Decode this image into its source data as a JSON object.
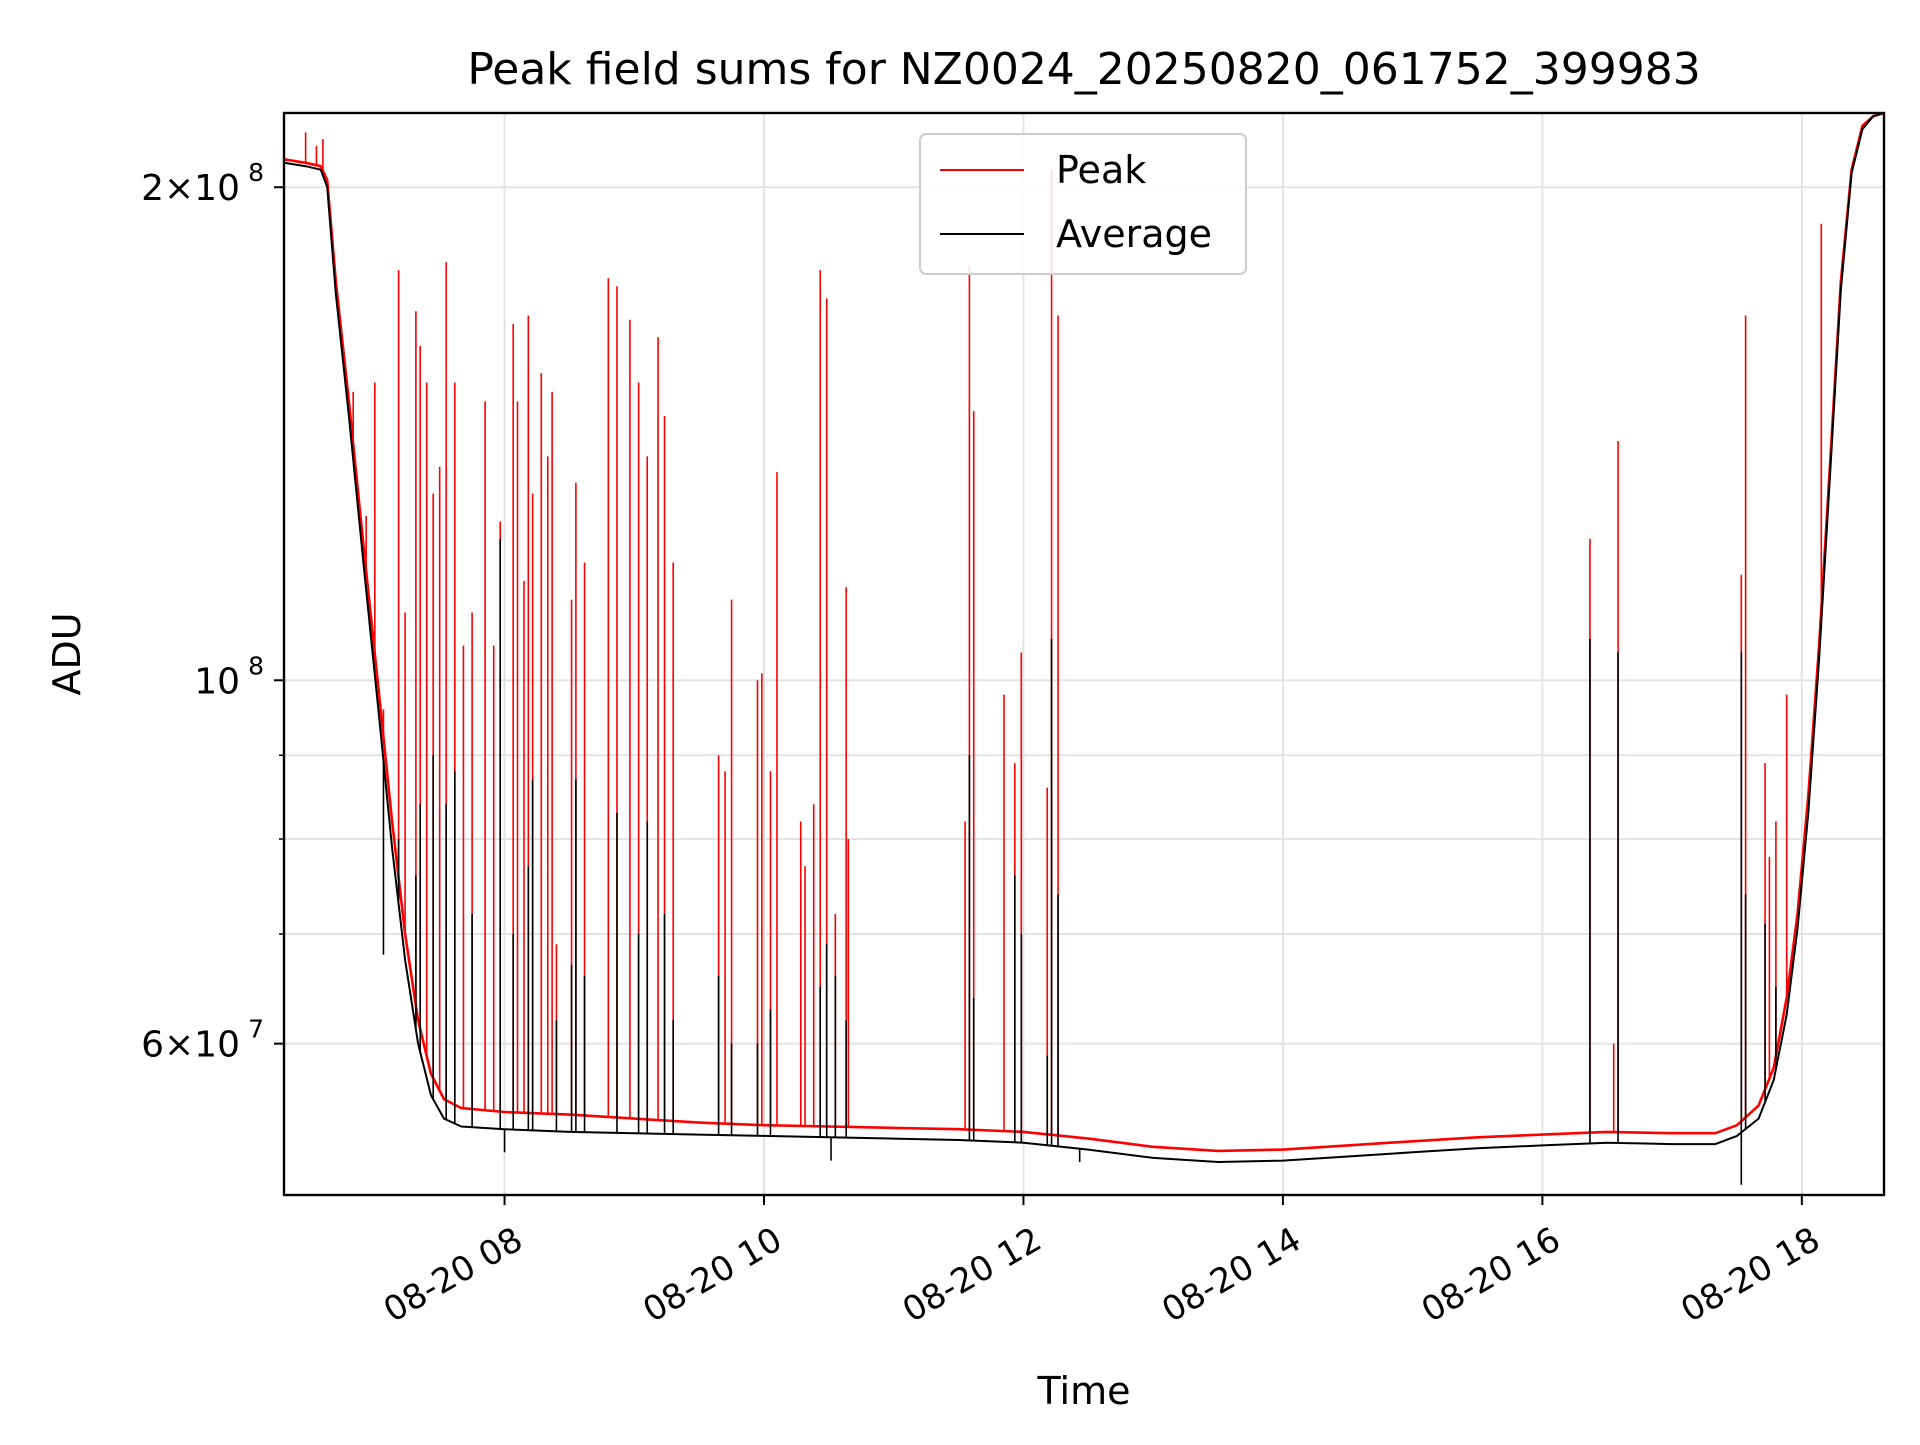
{
  "chart_data": {
    "type": "line",
    "title": "Peak field sums for NZ0024_20250820_061752_399983",
    "xlabel": "Time",
    "ylabel": "ADU",
    "y_scale": "log",
    "ylim": [
      48500000,
      222000000
    ],
    "xlim": [
      "2025-08-20 06:18",
      "2025-08-20 18:38"
    ],
    "grid": true,
    "legend_placement": "upper center",
    "x_ticks": [
      {
        "label": "08-20 08",
        "value": "2025-08-20 08:00"
      },
      {
        "label": "08-20 10",
        "value": "2025-08-20 10:00"
      },
      {
        "label": "08-20 12",
        "value": "2025-08-20 12:00"
      },
      {
        "label": "08-20 14",
        "value": "2025-08-20 14:00"
      },
      {
        "label": "08-20 16",
        "value": "2025-08-20 16:00"
      },
      {
        "label": "08-20 18",
        "value": "2025-08-20 18:00"
      }
    ],
    "y_ticks": [
      {
        "mantissa": "2",
        "exponent": "8",
        "value": 200000000
      },
      {
        "mantissa": "",
        "exponent": "8",
        "value": 100000000
      },
      {
        "mantissa": "6",
        "exponent": "7",
        "value": 60000000
      }
    ],
    "y_minor_ticks": [
      70000000,
      80000000,
      90000000
    ],
    "series": [
      {
        "name": "Peak",
        "color": "#ff0000",
        "points": [
          [
            "2025-08-20 06:18",
            208000000
          ],
          [
            "2025-08-20 06:28",
            207000000
          ],
          [
            "2025-08-20 06:35",
            206000000
          ],
          [
            "2025-08-20 06:38",
            202000000
          ],
          [
            "2025-08-20 06:42",
            175000000
          ],
          [
            "2025-08-20 06:48",
            148000000
          ],
          [
            "2025-08-20 06:55",
            120000000
          ],
          [
            "2025-08-20 07:02",
            98000000
          ],
          [
            "2025-08-20 07:08",
            82000000
          ],
          [
            "2025-08-20 07:14",
            70000000
          ],
          [
            "2025-08-20 07:20",
            62000000
          ],
          [
            "2025-08-20 07:26",
            57500000
          ],
          [
            "2025-08-20 07:32",
            55500000
          ],
          [
            "2025-08-20 07:40",
            54800000
          ],
          [
            "2025-08-20 08:00",
            54500000
          ],
          [
            "2025-08-20 08:30",
            54300000
          ],
          [
            "2025-08-20 09:00",
            54000000
          ],
          [
            "2025-08-20 09:30",
            53700000
          ],
          [
            "2025-08-20 10:00",
            53500000
          ],
          [
            "2025-08-20 10:30",
            53400000
          ],
          [
            "2025-08-20 11:00",
            53300000
          ],
          [
            "2025-08-20 11:30",
            53200000
          ],
          [
            "2025-08-20 12:00",
            53000000
          ],
          [
            "2025-08-20 12:30",
            52500000
          ],
          [
            "2025-08-20 13:00",
            51900000
          ],
          [
            "2025-08-20 13:30",
            51600000
          ],
          [
            "2025-08-20 14:00",
            51700000
          ],
          [
            "2025-08-20 14:30",
            52000000
          ],
          [
            "2025-08-20 15:00",
            52300000
          ],
          [
            "2025-08-20 15:30",
            52600000
          ],
          [
            "2025-08-20 16:00",
            52800000
          ],
          [
            "2025-08-20 16:30",
            53000000
          ],
          [
            "2025-08-20 17:00",
            52900000
          ],
          [
            "2025-08-20 17:20",
            52900000
          ],
          [
            "2025-08-20 17:30",
            53500000
          ],
          [
            "2025-08-20 17:40",
            55000000
          ],
          [
            "2025-08-20 17:47",
            58000000
          ],
          [
            "2025-08-20 17:53",
            64000000
          ],
          [
            "2025-08-20 17:58",
            72000000
          ],
          [
            "2025-08-20 18:03",
            85000000
          ],
          [
            "2025-08-20 18:08",
            105000000
          ],
          [
            "2025-08-20 18:13",
            135000000
          ],
          [
            "2025-08-20 18:18",
            175000000
          ],
          [
            "2025-08-20 18:23",
            205000000
          ],
          [
            "2025-08-20 18:28",
            218000000
          ],
          [
            "2025-08-20 18:33",
            221000000
          ],
          [
            "2025-08-20 18:38",
            222000000
          ]
        ],
        "spikes": [
          [
            "2025-08-20 06:28",
            216000000
          ],
          [
            "2025-08-20 06:33",
            212000000
          ],
          [
            "2025-08-20 06:36",
            214000000
          ],
          [
            "2025-08-20 06:50",
            150000000
          ],
          [
            "2025-08-20 06:56",
            126000000
          ],
          [
            "2025-08-20 07:00",
            152000000
          ],
          [
            "2025-08-20 07:04",
            96000000
          ],
          [
            "2025-08-20 07:11",
            178000000
          ],
          [
            "2025-08-20 07:14",
            110000000
          ],
          [
            "2025-08-20 07:19",
            168000000
          ],
          [
            "2025-08-20 07:21",
            160000000
          ],
          [
            "2025-08-20 07:24",
            152000000
          ],
          [
            "2025-08-20 07:27",
            130000000
          ],
          [
            "2025-08-20 07:30",
            135000000
          ],
          [
            "2025-08-20 07:33",
            180000000
          ],
          [
            "2025-08-20 07:37",
            152000000
          ],
          [
            "2025-08-20 07:41",
            105000000
          ],
          [
            "2025-08-20 07:45",
            110000000
          ],
          [
            "2025-08-20 07:51",
            148000000
          ],
          [
            "2025-08-20 07:55",
            105000000
          ],
          [
            "2025-08-20 07:58",
            125000000
          ],
          [
            "2025-08-20 08:04",
            165000000
          ],
          [
            "2025-08-20 08:06",
            148000000
          ],
          [
            "2025-08-20 08:09",
            115000000
          ],
          [
            "2025-08-20 08:11",
            167000000
          ],
          [
            "2025-08-20 08:13",
            130000000
          ],
          [
            "2025-08-20 08:17",
            154000000
          ],
          [
            "2025-08-20 08:20",
            137000000
          ],
          [
            "2025-08-20 08:22",
            150000000
          ],
          [
            "2025-08-20 08:24",
            69000000
          ],
          [
            "2025-08-20 08:31",
            112000000
          ],
          [
            "2025-08-20 08:33",
            132000000
          ],
          [
            "2025-08-20 08:37",
            118000000
          ],
          [
            "2025-08-20 08:48",
            176000000
          ],
          [
            "2025-08-20 08:52",
            174000000
          ],
          [
            "2025-08-20 08:58",
            166000000
          ],
          [
            "2025-08-20 09:02",
            152000000
          ],
          [
            "2025-08-20 09:06",
            137000000
          ],
          [
            "2025-08-20 09:11",
            162000000
          ],
          [
            "2025-08-20 09:14",
            145000000
          ],
          [
            "2025-08-20 09:18",
            118000000
          ],
          [
            "2025-08-20 09:39",
            90000000
          ],
          [
            "2025-08-20 09:42",
            88000000
          ],
          [
            "2025-08-20 09:45",
            112000000
          ],
          [
            "2025-08-20 09:57",
            100000000
          ],
          [
            "2025-08-20 09:59",
            101000000
          ],
          [
            "2025-08-20 10:03",
            88000000
          ],
          [
            "2025-08-20 10:06",
            134000000
          ],
          [
            "2025-08-20 10:17",
            82000000
          ],
          [
            "2025-08-20 10:19",
            77000000
          ],
          [
            "2025-08-20 10:23",
            84000000
          ],
          [
            "2025-08-20 10:26",
            178000000
          ],
          [
            "2025-08-20 10:29",
            171000000
          ],
          [
            "2025-08-20 10:33",
            72000000
          ],
          [
            "2025-08-20 10:38",
            114000000
          ],
          [
            "2025-08-20 10:39",
            80000000
          ],
          [
            "2025-08-20 11:33",
            82000000
          ],
          [
            "2025-08-20 11:35",
            179000000
          ],
          [
            "2025-08-20 11:37",
            146000000
          ],
          [
            "2025-08-20 11:51",
            98000000
          ],
          [
            "2025-08-20 11:56",
            89000000
          ],
          [
            "2025-08-20 11:59",
            104000000
          ],
          [
            "2025-08-20 12:11",
            86000000
          ],
          [
            "2025-08-20 12:13",
            205000000
          ],
          [
            "2025-08-20 12:16",
            167000000
          ],
          [
            "2025-08-20 16:22",
            122000000
          ],
          [
            "2025-08-20 16:33",
            60000000
          ],
          [
            "2025-08-20 16:35",
            140000000
          ],
          [
            "2025-08-20 17:32",
            116000000
          ],
          [
            "2025-08-20 17:34",
            167000000
          ],
          [
            "2025-08-20 17:43",
            89000000
          ],
          [
            "2025-08-20 17:45",
            78000000
          ],
          [
            "2025-08-20 17:48",
            82000000
          ],
          [
            "2025-08-20 17:53",
            98000000
          ],
          [
            "2025-08-20 18:09",
            190000000
          ]
        ]
      },
      {
        "name": "Average",
        "color": "#000000",
        "points": [
          [
            "2025-08-20 06:18",
            207000000
          ],
          [
            "2025-08-20 06:28",
            206000000
          ],
          [
            "2025-08-20 06:35",
            205000000
          ],
          [
            "2025-08-20 06:38",
            200000000
          ],
          [
            "2025-08-20 06:42",
            172000000
          ],
          [
            "2025-08-20 06:48",
            145000000
          ],
          [
            "2025-08-20 06:55",
            117000000
          ],
          [
            "2025-08-20 07:02",
            95000000
          ],
          [
            "2025-08-20 07:08",
            79000000
          ],
          [
            "2025-08-20 07:14",
            67500000
          ],
          [
            "2025-08-20 07:20",
            60000000
          ],
          [
            "2025-08-20 07:26",
            55800000
          ],
          [
            "2025-08-20 07:32",
            54000000
          ],
          [
            "2025-08-20 07:40",
            53400000
          ],
          [
            "2025-08-20 08:00",
            53200000
          ],
          [
            "2025-08-20 08:30",
            53000000
          ],
          [
            "2025-08-20 09:00",
            52900000
          ],
          [
            "2025-08-20 09:30",
            52800000
          ],
          [
            "2025-08-20 10:00",
            52700000
          ],
          [
            "2025-08-20 10:30",
            52600000
          ],
          [
            "2025-08-20 11:00",
            52500000
          ],
          [
            "2025-08-20 11:30",
            52400000
          ],
          [
            "2025-08-20 12:00",
            52200000
          ],
          [
            "2025-08-20 12:30",
            51700000
          ],
          [
            "2025-08-20 13:00",
            51100000
          ],
          [
            "2025-08-20 13:30",
            50800000
          ],
          [
            "2025-08-20 14:00",
            50900000
          ],
          [
            "2025-08-20 14:30",
            51200000
          ],
          [
            "2025-08-20 15:00",
            51500000
          ],
          [
            "2025-08-20 15:30",
            51800000
          ],
          [
            "2025-08-20 16:00",
            52000000
          ],
          [
            "2025-08-20 16:30",
            52200000
          ],
          [
            "2025-08-20 17:00",
            52100000
          ],
          [
            "2025-08-20 17:20",
            52100000
          ],
          [
            "2025-08-20 17:30",
            52700000
          ],
          [
            "2025-08-20 17:40",
            54000000
          ],
          [
            "2025-08-20 17:47",
            57000000
          ],
          [
            "2025-08-20 17:53",
            62500000
          ],
          [
            "2025-08-20 17:58",
            70500000
          ],
          [
            "2025-08-20 18:03",
            83000000
          ],
          [
            "2025-08-20 18:08",
            103000000
          ],
          [
            "2025-08-20 18:13",
            133000000
          ],
          [
            "2025-08-20 18:18",
            173000000
          ],
          [
            "2025-08-20 18:23",
            204000000
          ],
          [
            "2025-08-20 18:28",
            217000000
          ],
          [
            "2025-08-20 18:33",
            221000000
          ],
          [
            "2025-08-20 18:38",
            222000000
          ]
        ],
        "spikes": [
          [
            "2025-08-20 07:04",
            68000000
          ],
          [
            "2025-08-20 07:11",
            80000000
          ],
          [
            "2025-08-20 07:19",
            76000000
          ],
          [
            "2025-08-20 07:21",
            84000000
          ],
          [
            "2025-08-20 07:27",
            90000000
          ],
          [
            "2025-08-20 07:33",
            84000000
          ],
          [
            "2025-08-20 07:37",
            88000000
          ],
          [
            "2025-08-20 07:45",
            72000000
          ],
          [
            "2025-08-20 07:58",
            122000000
          ],
          [
            "2025-08-20 08:04",
            70000000
          ],
          [
            "2025-08-20 08:11",
            77000000
          ],
          [
            "2025-08-20 08:13",
            87000000
          ],
          [
            "2025-08-20 08:24",
            62000000
          ],
          [
            "2025-08-20 08:31",
            67000000
          ],
          [
            "2025-08-20 08:33",
            87000000
          ],
          [
            "2025-08-20 08:37",
            66000000
          ],
          [
            "2025-08-20 08:52",
            83000000
          ],
          [
            "2025-08-20 09:02",
            70000000
          ],
          [
            "2025-08-20 09:06",
            82000000
          ],
          [
            "2025-08-20 09:14",
            72000000
          ],
          [
            "2025-08-20 09:18",
            62000000
          ],
          [
            "2025-08-20 09:39",
            66000000
          ],
          [
            "2025-08-20 09:45",
            60000000
          ],
          [
            "2025-08-20 09:57",
            60000000
          ],
          [
            "2025-08-20 10:03",
            63000000
          ],
          [
            "2025-08-20 10:26",
            65000000
          ],
          [
            "2025-08-20 10:29",
            69000000
          ],
          [
            "2025-08-20 10:33",
            66000000
          ],
          [
            "2025-08-20 10:38",
            62000000
          ],
          [
            "2025-08-20 11:35",
            90000000
          ],
          [
            "2025-08-20 11:37",
            64000000
          ],
          [
            "2025-08-20 11:56",
            76000000
          ],
          [
            "2025-08-20 11:59",
            70000000
          ],
          [
            "2025-08-20 12:11",
            59000000
          ],
          [
            "2025-08-20 12:13",
            106000000
          ],
          [
            "2025-08-20 12:16",
            74000000
          ],
          [
            "2025-08-20 16:22",
            106000000
          ],
          [
            "2025-08-20 16:35",
            104000000
          ],
          [
            "2025-08-20 17:32",
            104000000
          ],
          [
            "2025-08-20 17:34",
            74000000
          ],
          [
            "2025-08-20 17:43",
            71000000
          ],
          [
            "2025-08-20 17:48",
            65000000
          ]
        ],
        "dips": [
          [
            "2025-08-20 08:00",
            51500000
          ],
          [
            "2025-08-20 10:31",
            50900000
          ],
          [
            "2025-08-20 12:26",
            50800000
          ],
          [
            "2025-08-20 17:32",
            49200000
          ]
        ]
      }
    ]
  }
}
